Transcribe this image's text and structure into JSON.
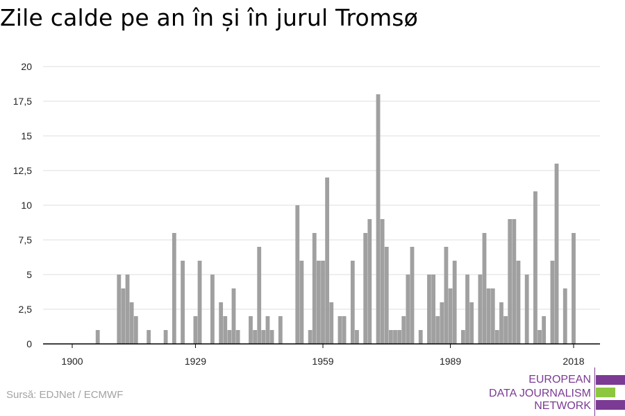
{
  "title": "Zile calde pe an în și în jurul Tromsø",
  "source": "Sursă: EDJNet / ECMWF",
  "logo": {
    "lines": [
      "EUROPEAN",
      "DATA JOURNALISM",
      "NETWORK"
    ],
    "colors": {
      "purple": "#7b3a93",
      "green": "#8dc63f"
    }
  },
  "chart_data": {
    "type": "bar",
    "title": "Zile calde pe an în și în jurul Tromsø",
    "xlabel": "",
    "ylabel": "",
    "xlim": [
      1894,
      2024
    ],
    "ylim": [
      0,
      20
    ],
    "yticks": [
      0,
      2.5,
      5,
      7.5,
      10,
      12.5,
      15,
      17.5,
      20
    ],
    "ytick_labels": [
      "0",
      "2,5",
      "5",
      "7,5",
      "10",
      "12,5",
      "15",
      "17,5",
      "20"
    ],
    "xticks": [
      1900,
      1929,
      1959,
      1989,
      2018
    ],
    "grid": true,
    "bar_color": "#a0a0a0",
    "x": [
      1900,
      1901,
      1902,
      1903,
      1904,
      1905,
      1906,
      1907,
      1908,
      1909,
      1910,
      1911,
      1912,
      1913,
      1914,
      1915,
      1916,
      1917,
      1918,
      1919,
      1920,
      1921,
      1922,
      1923,
      1924,
      1925,
      1926,
      1927,
      1928,
      1929,
      1930,
      1931,
      1932,
      1933,
      1934,
      1935,
      1936,
      1937,
      1938,
      1939,
      1940,
      1941,
      1942,
      1943,
      1944,
      1945,
      1946,
      1947,
      1948,
      1949,
      1950,
      1951,
      1952,
      1953,
      1954,
      1955,
      1956,
      1957,
      1958,
      1959,
      1960,
      1961,
      1962,
      1963,
      1964,
      1965,
      1966,
      1967,
      1968,
      1969,
      1970,
      1971,
      1972,
      1973,
      1974,
      1975,
      1976,
      1977,
      1978,
      1979,
      1980,
      1981,
      1982,
      1983,
      1984,
      1985,
      1986,
      1987,
      1988,
      1989,
      1990,
      1991,
      1992,
      1993,
      1994,
      1995,
      1996,
      1997,
      1998,
      1999,
      2000,
      2001,
      2002,
      2003,
      2004,
      2005,
      2006,
      2007,
      2008,
      2009,
      2010,
      2011,
      2012,
      2013,
      2014,
      2015,
      2016,
      2017,
      2018
    ],
    "values": [
      0,
      0,
      0,
      0,
      0,
      0,
      1,
      0,
      0,
      0,
      0,
      5,
      4,
      5,
      3,
      2,
      0,
      0,
      1,
      0,
      0,
      0,
      1,
      0,
      8,
      0,
      6,
      0,
      0,
      2,
      6,
      0,
      0,
      5,
      0,
      3,
      2,
      1,
      4,
      1,
      0,
      0,
      2,
      1,
      7,
      1,
      2,
      1,
      0,
      2,
      0,
      0,
      0,
      10,
      6,
      0,
      1,
      8,
      6,
      6,
      12,
      3,
      0,
      2,
      2,
      0,
      6,
      1,
      0,
      8,
      9,
      0,
      18,
      9,
      7,
      1,
      1,
      1,
      2,
      5,
      7,
      0,
      1,
      0,
      5,
      5,
      2,
      3,
      7,
      4,
      6,
      0,
      1,
      5,
      3,
      0,
      5,
      8,
      4,
      4,
      1,
      3,
      2,
      9,
      9,
      6,
      0,
      5,
      0,
      11,
      1,
      2,
      0,
      6,
      13,
      0,
      4,
      0,
      8
    ]
  }
}
